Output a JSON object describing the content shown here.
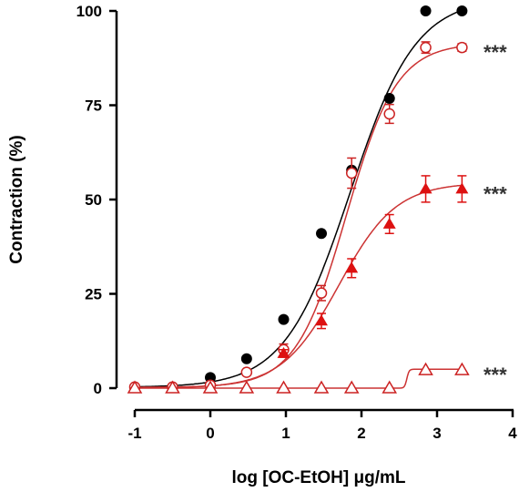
{
  "chart_data": {
    "type": "scatter",
    "xlabel": "log [OC-EtOH] μg/mL",
    "ylabel": "Contraction  (%)",
    "xlim": [
      -1,
      4
    ],
    "ylim": [
      0,
      100
    ],
    "xticks": [
      "-1",
      "0",
      "1",
      "2",
      "3",
      "4"
    ],
    "yticks": [
      "0",
      "25",
      "50",
      "75",
      "100"
    ],
    "grid": false,
    "series": [
      {
        "marker": "filled-circle",
        "color": "#000000",
        "curve_color": "#000000",
        "x": [
          -1.0,
          -0.5,
          0.0,
          0.48,
          0.97,
          1.47,
          1.87,
          2.37,
          2.85,
          3.33
        ],
        "y": [
          0.3,
          0.3,
          2.8,
          7.8,
          18.2,
          41.0,
          57.8,
          76.8,
          100.0,
          100.0
        ],
        "err": [
          0,
          0,
          0,
          0,
          0,
          0,
          0,
          0,
          0,
          0
        ],
        "fit": {
          "bottom": 0.2,
          "top": 103.5,
          "logec50": 1.85,
          "hill": 1.0
        }
      },
      {
        "marker": "open-circle",
        "color": "#cc2222",
        "curve_color": "#cc3333",
        "x": [
          -1.0,
          -0.5,
          0.0,
          0.48,
          0.97,
          1.47,
          1.87,
          2.37,
          2.85,
          3.33
        ],
        "y": [
          0.3,
          0.3,
          0.8,
          4.2,
          10.2,
          25.2,
          57.0,
          72.7,
          90.3,
          90.3
        ],
        "err": [
          0,
          0,
          0,
          0,
          1.5,
          2.0,
          4.0,
          2.5,
          1.5,
          1.0
        ],
        "fit": {
          "bottom": 0.2,
          "top": 91.5,
          "logec50": 1.8,
          "hill": 1.3
        }
      },
      {
        "marker": "filled-triangle",
        "color": "#dd1111",
        "curve_color": "#cc3333",
        "x": [
          -1.0,
          -0.5,
          0.0,
          0.48,
          0.97,
          1.47,
          1.87,
          2.37,
          2.85,
          3.33
        ],
        "y": [
          0.0,
          0.0,
          0.0,
          0.0,
          9.2,
          17.8,
          31.8,
          43.5,
          52.8,
          52.8
        ],
        "err": [
          0,
          0,
          0,
          0,
          1.0,
          2.0,
          2.5,
          2.5,
          3.5,
          3.5
        ],
        "fit": {
          "bottom": 0.0,
          "top": 54.5,
          "logec50": 1.7,
          "hill": 1.15
        }
      },
      {
        "marker": "open-triangle",
        "color": "#cc2222",
        "curve_color": "#cc3333",
        "x": [
          -1.0,
          -0.5,
          0.0,
          0.48,
          0.97,
          1.47,
          1.87,
          2.37,
          2.85,
          3.33
        ],
        "y": [
          0.0,
          0.0,
          0.0,
          0.0,
          0.0,
          0.0,
          0.0,
          0.0,
          4.8,
          4.8
        ],
        "err": [
          0,
          0,
          0,
          0,
          0,
          0,
          0,
          0,
          0,
          0
        ],
        "fit": {
          "bottom": 0.0,
          "top": 5.0,
          "logec50": 2.6,
          "hill": 30
        }
      }
    ],
    "annotations": [
      {
        "text": "***",
        "series": 1
      },
      {
        "text": "***",
        "series": 2
      },
      {
        "text": "***",
        "series": 3
      }
    ]
  }
}
